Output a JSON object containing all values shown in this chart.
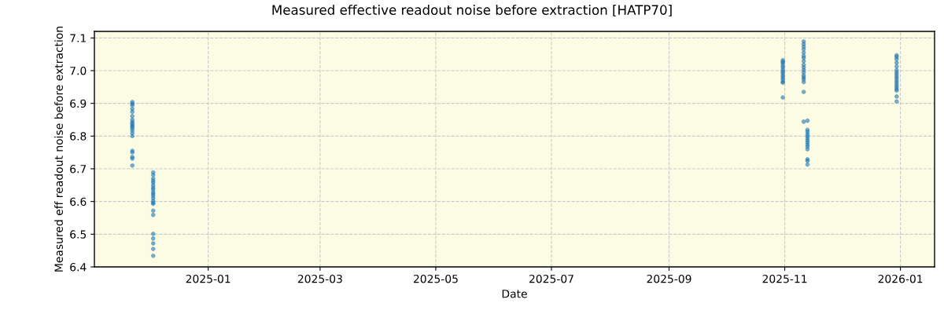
{
  "chart_data": {
    "type": "scatter",
    "title": "Measured effective readout noise before extraction [HATP70]",
    "xlabel": "Date",
    "ylabel": "Measured eff readout noise before extraction",
    "series": [
      {
        "color": "#1f77b4",
        "x": [
          "2024-11-22",
          "2024-11-22",
          "2024-11-22",
          "2024-11-22",
          "2024-11-22",
          "2024-11-22",
          "2024-11-22",
          "2024-11-22",
          "2024-11-22",
          "2024-11-22",
          "2024-11-22",
          "2024-11-22",
          "2024-11-22",
          "2024-11-22",
          "2024-11-22",
          "2024-11-22",
          "2024-11-22",
          "2024-11-22",
          "2024-11-22",
          "2024-11-22",
          "2024-12-03",
          "2024-12-03",
          "2024-12-03",
          "2024-12-03",
          "2024-12-03",
          "2024-12-03",
          "2024-12-03",
          "2024-12-03",
          "2024-12-03",
          "2024-12-03",
          "2024-12-03",
          "2024-12-03",
          "2024-12-03",
          "2024-12-03",
          "2024-12-03",
          "2024-12-03",
          "2024-12-03",
          "2024-12-03",
          "2024-12-03",
          "2024-12-03",
          "2024-12-03",
          "2024-12-03",
          "2025-10-31",
          "2025-10-31",
          "2025-10-31",
          "2025-10-31",
          "2025-10-31",
          "2025-10-31",
          "2025-10-31",
          "2025-10-31",
          "2025-10-31",
          "2025-10-31",
          "2025-10-31",
          "2025-10-31",
          "2025-10-31",
          "2025-10-31",
          "2025-11-11",
          "2025-11-11",
          "2025-11-11",
          "2025-11-11",
          "2025-11-11",
          "2025-11-11",
          "2025-11-11",
          "2025-11-11",
          "2025-11-11",
          "2025-11-11",
          "2025-11-11",
          "2025-11-11",
          "2025-11-11",
          "2025-11-11",
          "2025-11-11",
          "2025-11-11",
          "2025-11-11",
          "2025-11-11",
          "2025-11-13",
          "2025-11-13",
          "2025-11-13",
          "2025-11-13",
          "2025-11-13",
          "2025-11-13",
          "2025-11-13",
          "2025-11-13",
          "2025-11-13",
          "2025-11-13",
          "2025-11-13",
          "2025-11-13",
          "2025-11-13",
          "2025-11-13",
          "2025-12-30",
          "2025-12-30",
          "2025-12-30",
          "2025-12-30",
          "2025-12-30",
          "2025-12-30",
          "2025-12-30",
          "2025-12-30",
          "2025-12-30",
          "2025-12-30",
          "2025-12-30",
          "2025-12-30",
          "2025-12-30",
          "2025-12-30",
          "2025-12-30",
          "2025-12-30",
          "2025-12-30",
          "2025-12-30"
        ],
        "values": [
          6.904,
          6.899,
          6.894,
          6.883,
          6.874,
          6.861,
          6.85,
          6.843,
          6.838,
          6.833,
          6.829,
          6.824,
          6.817,
          6.809,
          6.8,
          6.755,
          6.75,
          6.736,
          6.731,
          6.71,
          6.689,
          6.681,
          6.67,
          6.663,
          6.657,
          6.649,
          6.642,
          6.636,
          6.628,
          6.623,
          6.617,
          6.61,
          6.602,
          6.596,
          6.593,
          6.572,
          6.559,
          6.501,
          6.487,
          6.472,
          6.455,
          6.434,
          7.032,
          7.027,
          7.023,
          7.016,
          7.01,
          7.003,
          6.997,
          6.992,
          6.985,
          6.979,
          6.973,
          6.966,
          6.963,
          6.918,
          7.089,
          7.081,
          7.073,
          7.065,
          7.055,
          7.045,
          7.039,
          7.029,
          7.018,
          7.01,
          7.002,
          6.994,
          6.985,
          6.979,
          6.973,
          6.965,
          6.935,
          6.844,
          6.847,
          6.819,
          6.813,
          6.806,
          6.8,
          6.794,
          6.787,
          6.781,
          6.774,
          6.768,
          6.76,
          6.729,
          6.724,
          6.713,
          7.047,
          7.042,
          7.035,
          7.024,
          7.013,
          7.002,
          6.995,
          6.989,
          6.982,
          6.976,
          6.969,
          6.963,
          6.956,
          6.95,
          6.944,
          6.939,
          6.921,
          6.906
        ]
      }
    ],
    "xlim": [
      "2024-11-02",
      "2026-01-19"
    ],
    "xticks": [
      "2025-01",
      "2025-03",
      "2025-05",
      "2025-07",
      "2025-09",
      "2025-11",
      "2026-01"
    ],
    "ylim": [
      6.4,
      7.12
    ],
    "yticks": [
      6.4,
      6.5,
      6.6,
      6.7,
      6.8,
      6.9,
      {
        "value": 7,
        "label": "7.0"
      },
      7.1
    ],
    "grid": true,
    "marker": "circle"
  }
}
